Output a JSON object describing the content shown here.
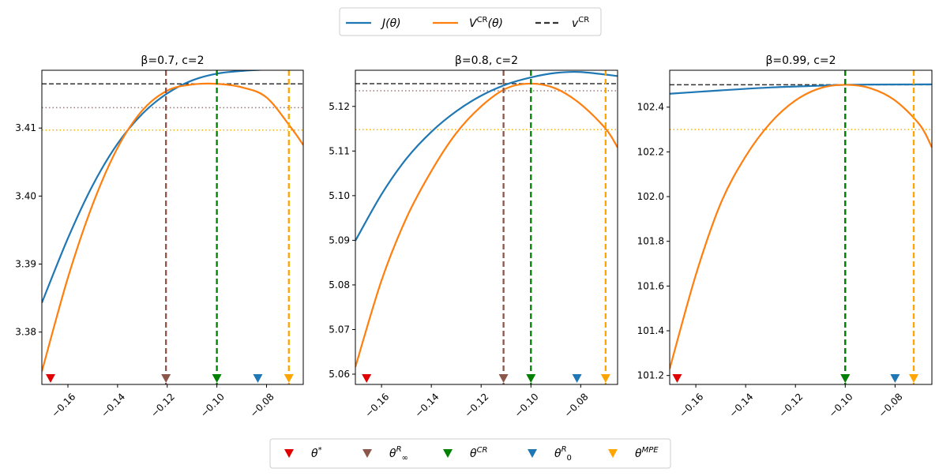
{
  "chart_data": [
    {
      "type": "line",
      "title": "β=0.7, c=2",
      "xlim": [
        -0.1705,
        -0.0652
      ],
      "ylim": [
        3.3723,
        3.4185
      ],
      "xticks": [
        -0.16,
        -0.14,
        -0.12,
        -0.1,
        -0.08
      ],
      "xtick_labels": [
        "−0.16",
        "−0.14",
        "−0.12",
        "−0.10",
        "−0.08"
      ],
      "yticks": [
        3.38,
        3.39,
        3.4,
        3.41
      ],
      "ytick_labels": [
        "3.38",
        "3.39",
        "3.40",
        "3.41"
      ],
      "series": [
        {
          "name": "J(θ)",
          "x": [
            -0.1705,
            -0.16,
            -0.15,
            -0.14,
            -0.13,
            -0.12,
            -0.11,
            -0.1,
            -0.09,
            -0.08,
            -0.0652
          ],
          "y": [
            3.3843,
            3.3938,
            3.4016,
            3.4077,
            3.4121,
            3.4151,
            3.417,
            3.418,
            3.4184,
            3.4186,
            3.4187
          ]
        },
        {
          "name": "V^CR(θ)",
          "x": [
            -0.1705,
            -0.16,
            -0.15,
            -0.14,
            -0.13,
            -0.12,
            -0.11,
            -0.1,
            -0.09,
            -0.08,
            -0.07,
            -0.0652
          ],
          "y": [
            3.3742,
            3.388,
            3.3988,
            3.4071,
            3.4126,
            3.4155,
            3.4164,
            3.4165,
            3.416,
            3.4145,
            3.41,
            3.4075
          ]
        }
      ],
      "hlines": [
        {
          "name": "v^CR",
          "y": 3.4165,
          "color": "#333333",
          "style": "dashed"
        },
        {
          "name": "V at θ∞R",
          "y": 3.413,
          "color": "#9a7a7a",
          "style": "dotted"
        },
        {
          "name": "V at θMPE",
          "y": 3.4097,
          "color": "#f5b400",
          "style": "dotted"
        }
      ],
      "vlines": [
        {
          "name": "θ∞R",
          "x": -0.1205,
          "color": "#8c564b"
        },
        {
          "name": "θCR",
          "x": -0.1,
          "color": "#008000"
        },
        {
          "name": "θMPE",
          "x": -0.071,
          "color": "#ffa500"
        }
      ],
      "markers": [
        {
          "name": "θ*",
          "x": -0.167,
          "color": "#e00000"
        },
        {
          "name": "θ∞R",
          "x": -0.1205,
          "color": "#8c564b"
        },
        {
          "name": "θCR",
          "x": -0.1,
          "color": "#008000"
        },
        {
          "name": "θ0R",
          "x": -0.0835,
          "color": "#1f77b4"
        },
        {
          "name": "θMPE",
          "x": -0.071,
          "color": "#ffa500"
        }
      ]
    },
    {
      "type": "line",
      "title": "β=0.8, c=2",
      "xlim": [
        -0.1705,
        -0.0652
      ],
      "ylim": [
        5.0577,
        5.1281
      ],
      "xticks": [
        -0.16,
        -0.14,
        -0.12,
        -0.1,
        -0.08
      ],
      "xtick_labels": [
        "−0.16",
        "−0.14",
        "−0.12",
        "−0.10",
        "−0.08"
      ],
      "yticks": [
        5.06,
        5.07,
        5.08,
        5.09,
        5.1,
        5.11,
        5.12
      ],
      "ytick_labels": [
        "5.06",
        "5.07",
        "5.08",
        "5.09",
        "5.10",
        "5.11",
        "5.12"
      ],
      "series": [
        {
          "name": "J(θ)",
          "x": [
            -0.1705,
            -0.16,
            -0.15,
            -0.14,
            -0.13,
            -0.12,
            -0.11,
            -0.1,
            -0.09,
            -0.08,
            -0.0652
          ],
          "y": [
            5.0899,
            5.1003,
            5.1083,
            5.1143,
            5.1189,
            5.1224,
            5.1249,
            5.1265,
            5.1275,
            5.1277,
            5.1268
          ]
        },
        {
          "name": "V^CR(θ)",
          "x": [
            -0.1705,
            -0.16,
            -0.15,
            -0.14,
            -0.13,
            -0.12,
            -0.11,
            -0.1,
            -0.09,
            -0.08,
            -0.07,
            -0.0652
          ],
          "y": [
            5.0616,
            5.081,
            5.095,
            5.1055,
            5.114,
            5.12,
            5.124,
            5.1251,
            5.124,
            5.1205,
            5.115,
            5.1108
          ]
        }
      ],
      "hlines": [
        {
          "name": "v^CR",
          "y": 5.1251,
          "color": "#333333",
          "style": "dashed"
        },
        {
          "name": "V at θ∞R",
          "y": 5.1235,
          "color": "#9a7a7a",
          "style": "dotted"
        },
        {
          "name": "V at θMPE",
          "y": 5.1148,
          "color": "#f5b400",
          "style": "dotted"
        }
      ],
      "vlines": [
        {
          "name": "θ∞R",
          "x": -0.111,
          "color": "#8c564b"
        },
        {
          "name": "θCR",
          "x": -0.1,
          "color": "#008000"
        },
        {
          "name": "θMPE",
          "x": -0.07,
          "color": "#ffa500"
        }
      ],
      "markers": [
        {
          "name": "θ*",
          "x": -0.166,
          "color": "#e00000"
        },
        {
          "name": "θ∞R",
          "x": -0.111,
          "color": "#8c564b"
        },
        {
          "name": "θCR",
          "x": -0.1,
          "color": "#008000"
        },
        {
          "name": "θ0R",
          "x": -0.0815,
          "color": "#1f77b4"
        },
        {
          "name": "θMPE",
          "x": -0.07,
          "color": "#ffa500"
        }
      ]
    },
    {
      "type": "line",
      "title": "β=0.99, c=2",
      "xlim": [
        -0.1705,
        -0.0652
      ],
      "ylim": [
        101.16,
        102.565
      ],
      "xticks": [
        -0.16,
        -0.14,
        -0.12,
        -0.1,
        -0.08
      ],
      "xtick_labels": [
        "−0.16",
        "−0.14",
        "−0.12",
        "−0.10",
        "−0.08"
      ],
      "yticks": [
        101.2,
        101.4,
        101.6,
        101.8,
        102.0,
        102.2,
        102.4
      ],
      "ytick_labels": [
        "101.2",
        "101.4",
        "101.6",
        "101.8",
        "102.0",
        "102.2",
        "102.4"
      ],
      "series": [
        {
          "name": "J(θ)",
          "x": [
            -0.1705,
            -0.15,
            -0.13,
            -0.11,
            -0.1,
            -0.09,
            -0.0652
          ],
          "y": [
            102.46,
            102.475,
            102.488,
            102.496,
            102.5,
            102.501,
            102.502
          ]
        },
        {
          "name": "V^CR(θ)",
          "x": [
            -0.1705,
            -0.16,
            -0.15,
            -0.14,
            -0.13,
            -0.12,
            -0.11,
            -0.1,
            -0.09,
            -0.08,
            -0.07,
            -0.0652
          ],
          "y": [
            101.23,
            101.65,
            101.97,
            102.18,
            102.33,
            102.43,
            102.485,
            102.5,
            102.485,
            102.43,
            102.32,
            102.22
          ]
        }
      ],
      "hlines": [
        {
          "name": "v^CR",
          "y": 102.5,
          "color": "#333333",
          "style": "dashed"
        },
        {
          "name": "V at θMPE",
          "y": 102.3,
          "color": "#f5b400",
          "style": "dotted"
        }
      ],
      "vlines": [
        {
          "name": "θ∞R",
          "x": -0.1,
          "color": "#8c564b"
        },
        {
          "name": "θCR",
          "x": -0.1,
          "color": "#008000"
        },
        {
          "name": "θMPE",
          "x": -0.0725,
          "color": "#ffa500"
        }
      ],
      "markers": [
        {
          "name": "θ*",
          "x": -0.1675,
          "color": "#e00000"
        },
        {
          "name": "θ∞R",
          "x": -0.1,
          "color": "#8c564b"
        },
        {
          "name": "θCR",
          "x": -0.1,
          "color": "#008000"
        },
        {
          "name": "θ0R",
          "x": -0.08,
          "color": "#1f77b4"
        },
        {
          "name": "θMPE",
          "x": -0.0725,
          "color": "#ffa500"
        }
      ]
    }
  ],
  "legend_top": {
    "placement": "top-center",
    "entries": [
      {
        "key": "J",
        "label": "J(θ)",
        "color": "#1f77b4",
        "style": "solid"
      },
      {
        "key": "V",
        "label": "V^CR(θ)",
        "color": "#ff7f0e",
        "style": "solid"
      },
      {
        "key": "v",
        "label": "v^CR",
        "color": "#333333",
        "style": "dashed"
      }
    ]
  },
  "legend_bottom": {
    "placement": "bottom-center",
    "entries": [
      {
        "key": "theta_star",
        "label": "θ*",
        "color": "#e00000"
      },
      {
        "key": "theta_inf",
        "label": "θ∞R",
        "color": "#8c564b"
      },
      {
        "key": "theta_cr",
        "label": "θCR",
        "color": "#008000"
      },
      {
        "key": "theta_0",
        "label": "θ0R",
        "color": "#1f77b4"
      },
      {
        "key": "theta_mpe",
        "label": "θMPE",
        "color": "#ffa500"
      }
    ]
  },
  "colors": {
    "J": "#1f77b4",
    "V": "#ff7f0e"
  }
}
